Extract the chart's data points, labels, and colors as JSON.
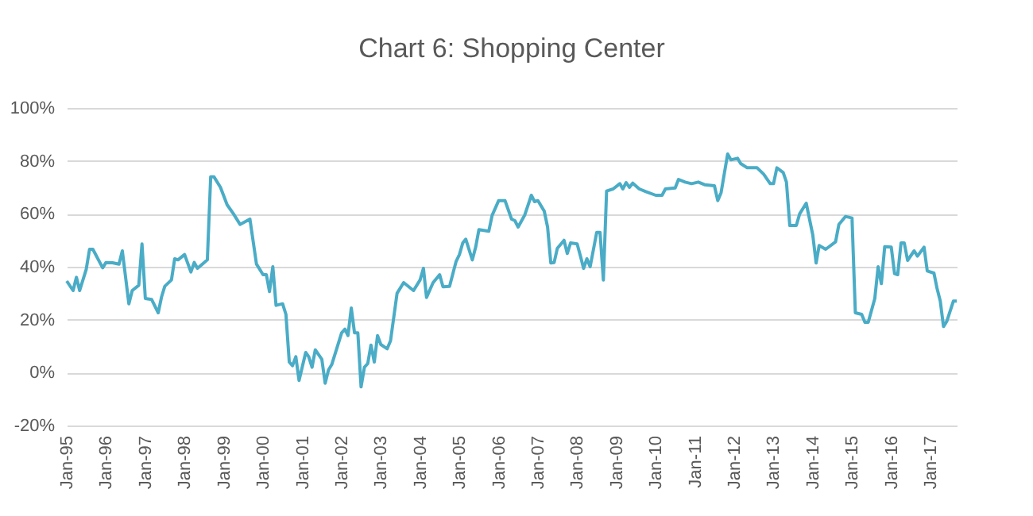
{
  "chart_data": {
    "type": "line",
    "title": "Chart 6: Shopping Center",
    "xlim": [
      "1995-01",
      "2017-09"
    ],
    "xticks": [
      {
        "value": "1995-01",
        "label": "Jan-95"
      },
      {
        "value": "1996-01",
        "label": "Jan-96"
      },
      {
        "value": "1997-01",
        "label": "Jan-97"
      },
      {
        "value": "1998-01",
        "label": "Jan-98"
      },
      {
        "value": "1999-01",
        "label": "Jan-99"
      },
      {
        "value": "2000-01",
        "label": "Jan-00"
      },
      {
        "value": "2001-01",
        "label": "Jan-01"
      },
      {
        "value": "2002-01",
        "label": "Jan-02"
      },
      {
        "value": "2003-01",
        "label": "Jan-03"
      },
      {
        "value": "2004-01",
        "label": "Jan-04"
      },
      {
        "value": "2005-01",
        "label": "Jan-05"
      },
      {
        "value": "2006-01",
        "label": "Jan-06"
      },
      {
        "value": "2007-01",
        "label": "Jan-07"
      },
      {
        "value": "2008-01",
        "label": "Jan-08"
      },
      {
        "value": "2009-01",
        "label": "Jan-09"
      },
      {
        "value": "2010-01",
        "label": "Jan-10"
      },
      {
        "value": "2011-01",
        "label": "Jan-11"
      },
      {
        "value": "2012-01",
        "label": "Jan-12"
      },
      {
        "value": "2013-01",
        "label": "Jan-13"
      },
      {
        "value": "2014-01",
        "label": "Jan-14"
      },
      {
        "value": "2015-01",
        "label": "Jan-15"
      },
      {
        "value": "2016-01",
        "label": "Jan-16"
      },
      {
        "value": "2017-01",
        "label": "Jan-17"
      }
    ],
    "ylim": [
      -20,
      100
    ],
    "yticks": [
      {
        "value": -20,
        "label": "-20%"
      },
      {
        "value": 0,
        "label": "0%"
      },
      {
        "value": 20,
        "label": "20%"
      },
      {
        "value": 40,
        "label": "40%"
      },
      {
        "value": 60,
        "label": "60%"
      },
      {
        "value": 80,
        "label": "80%"
      },
      {
        "value": 100,
        "label": "100%"
      }
    ],
    "grid": "y",
    "marker": "none",
    "line_style": "solid",
    "x": [
      "1995-01",
      "1995-03",
      "1995-04",
      "1995-05",
      "1995-07",
      "1995-08",
      "1995-09",
      "1995-12",
      "1996-01",
      "1996-03",
      "1996-05",
      "1996-06",
      "1996-08",
      "1996-09",
      "1996-11",
      "1996-12",
      "1997-01",
      "1997-03",
      "1997-05",
      "1997-06",
      "1997-07",
      "1997-09",
      "1997-10",
      "1997-11",
      "1998-01",
      "1998-03",
      "1998-04",
      "1998-05",
      "1998-08",
      "1998-09",
      "1998-10",
      "1998-12",
      "1999-02",
      "1999-04",
      "1999-06",
      "1999-09",
      "1999-11",
      "2000-01",
      "2000-02",
      "2000-03",
      "2000-04",
      "2000-05",
      "2000-07",
      "2000-08",
      "2000-09",
      "2000-10",
      "2000-11",
      "2000-12",
      "2001-02",
      "2001-03",
      "2001-04",
      "2001-05",
      "2001-07",
      "2001-08",
      "2001-09",
      "2001-10",
      "2002-01",
      "2002-02",
      "2002-03",
      "2002-04",
      "2002-05",
      "2002-06",
      "2002-07",
      "2002-08",
      "2002-09",
      "2002-10",
      "2002-11",
      "2002-12",
      "2003-01",
      "2003-03",
      "2003-04",
      "2003-06",
      "2003-08",
      "2003-11",
      "2004-01",
      "2004-02",
      "2004-03",
      "2004-05",
      "2004-07",
      "2004-08",
      "2004-10",
      "2004-12",
      "2005-01",
      "2005-02",
      "2005-03",
      "2005-05",
      "2005-06",
      "2005-07",
      "2005-10",
      "2005-11",
      "2006-01",
      "2006-03",
      "2006-05",
      "2006-06",
      "2006-07",
      "2006-09",
      "2006-11",
      "2006-12",
      "2007-01",
      "2007-03",
      "2007-04",
      "2007-05",
      "2007-06",
      "2007-07",
      "2007-09",
      "2007-10",
      "2007-11",
      "2008-01",
      "2008-02",
      "2008-03",
      "2008-04",
      "2008-05",
      "2008-07",
      "2008-08",
      "2008-09",
      "2008-10",
      "2008-12",
      "2009-02",
      "2009-03",
      "2009-04",
      "2009-05",
      "2009-06",
      "2009-08",
      "2009-10",
      "2010-01",
      "2010-03",
      "2010-04",
      "2010-07",
      "2010-08",
      "2010-10",
      "2010-12",
      "2011-02",
      "2011-04",
      "2011-07",
      "2011-08",
      "2011-09",
      "2011-11",
      "2011-12",
      "2012-02",
      "2012-03",
      "2012-05",
      "2012-08",
      "2012-10",
      "2012-12",
      "2013-01",
      "2013-02",
      "2013-04",
      "2013-05",
      "2013-06",
      "2013-08",
      "2013-09",
      "2013-11",
      "2014-01",
      "2014-02",
      "2014-03",
      "2014-05",
      "2014-08",
      "2014-09",
      "2014-11",
      "2015-01",
      "2015-02",
      "2015-04",
      "2015-05",
      "2015-06",
      "2015-08",
      "2015-09",
      "2015-10",
      "2015-11",
      "2016-01",
      "2016-02",
      "2016-03",
      "2016-04",
      "2016-05",
      "2016-06",
      "2016-08",
      "2016-09",
      "2016-11",
      "2016-12",
      "2017-02",
      "2017-03",
      "2017-04",
      "2017-05",
      "2017-06",
      "2017-08",
      "2017-09"
    ],
    "series": [
      {
        "color": "#4aacc6",
        "values": [
          34.6,
          31,
          36,
          31,
          39,
          46.6,
          46.6,
          39.6,
          41.6,
          41.5,
          41,
          46,
          26,
          31,
          33,
          48.6,
          28,
          27.6,
          22.6,
          28.6,
          32.6,
          35,
          43,
          42.6,
          44.6,
          38,
          41.6,
          39.4,
          42.6,
          74,
          74,
          70,
          63.4,
          60,
          56,
          58,
          41,
          37,
          37,
          30.6,
          40,
          25.4,
          26,
          22,
          4,
          2.6,
          6,
          -3,
          7.6,
          6,
          2,
          8.6,
          5,
          -4,
          1,
          3,
          15,
          16.4,
          14,
          24.4,
          15,
          15,
          -5.4,
          2,
          3.4,
          10.4,
          4,
          14,
          10.6,
          9,
          12,
          30,
          34,
          31,
          35,
          39.4,
          28.4,
          34,
          37,
          32.4,
          32.6,
          42,
          44.6,
          49,
          50.4,
          42.6,
          47.4,
          54,
          53.4,
          59.4,
          65,
          65,
          58,
          57.4,
          55,
          59.6,
          67,
          64.6,
          65,
          61,
          55,
          41.4,
          41.6,
          47,
          50,
          45,
          49,
          48.6,
          44,
          39.4,
          43,
          40,
          53,
          53,
          35,
          68.6,
          69.4,
          71.4,
          69.4,
          71.8,
          70,
          71.6,
          69.4,
          68.4,
          67,
          67,
          69.4,
          69.8,
          73,
          72,
          71.4,
          72,
          71,
          70.6,
          65,
          68,
          82.6,
          80.4,
          81,
          79,
          77.4,
          77.4,
          75,
          71.4,
          71.4,
          77.4,
          75.6,
          72,
          55.6,
          55.6,
          60,
          64,
          52,
          41.4,
          48,
          46.6,
          49.4,
          56,
          59,
          58.4,
          22.6,
          22,
          19,
          19,
          28,
          40,
          33.6,
          47.6,
          47.4,
          37.4,
          37,
          49,
          49,
          42.4,
          46,
          44,
          47.4,
          38.4,
          37.6,
          32,
          27,
          17.4,
          19.4,
          27,
          27
        ]
      }
    ]
  }
}
